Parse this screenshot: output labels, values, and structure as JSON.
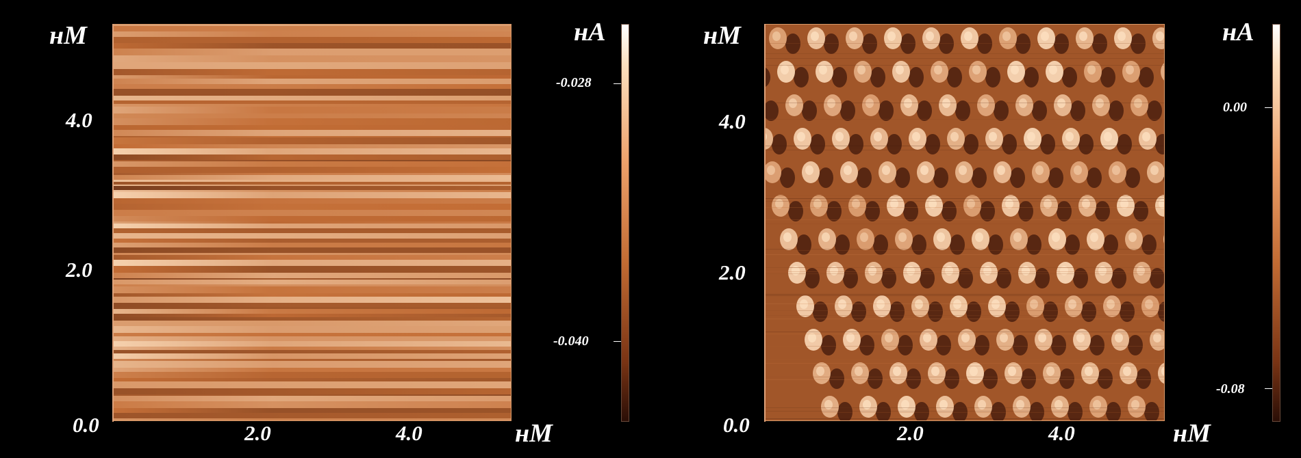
{
  "panels": [
    {
      "y_unit": "нМ",
      "x_unit": "нМ",
      "y_ticks": [
        "4.0",
        "2.0",
        "0.0"
      ],
      "x_ticks": [
        "2.0",
        "4.0"
      ],
      "colorbar": {
        "unit": "нА",
        "labels": [
          "-0.028",
          "-0.040"
        ]
      },
      "pattern": "horizontal-streaks"
    },
    {
      "y_unit": "нМ",
      "x_unit": "нМ",
      "y_ticks": [
        "4.0",
        "2.0",
        "0.0"
      ],
      "x_ticks": [
        "2.0",
        "4.0"
      ],
      "colorbar": {
        "unit": "нА",
        "labels": [
          "0.00",
          "-0.08"
        ]
      },
      "pattern": "atomic-lattice"
    }
  ],
  "colors": {
    "dark": "#3a1408",
    "mid": "#c26b33",
    "light": "#fde0c0",
    "frame": "#d89a6a"
  }
}
